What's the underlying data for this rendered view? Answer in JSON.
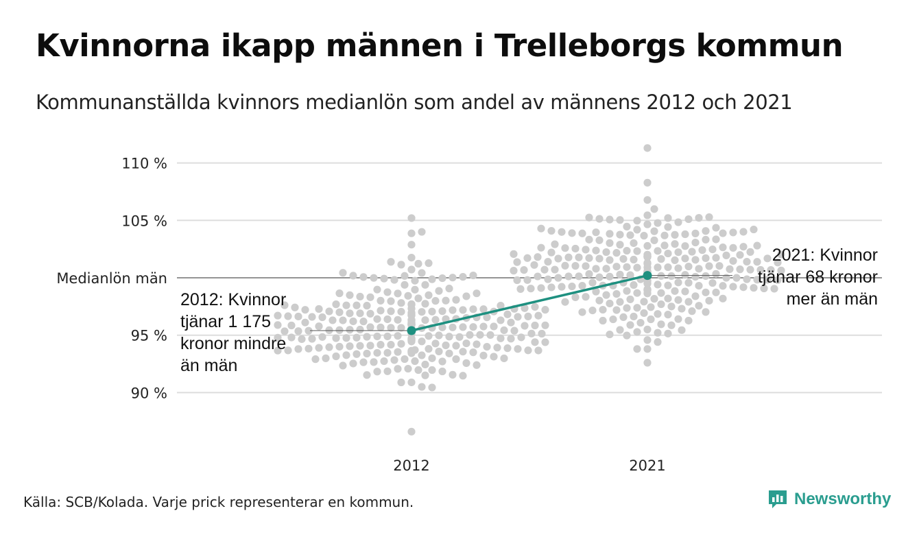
{
  "title": "Kvinnorna ikapp männen i Trelleborgs kommun",
  "subtitle": "Kommunanställda kvinnors medianlön som andel av männens 2012 och 2021",
  "source": "Källa: SCB/Kolada. Varje prick representerar en kommun.",
  "brand": {
    "name": "Newsworthy",
    "icon": "bar-chart-speech-bubble-icon"
  },
  "colors": {
    "highlight": "#1e9080",
    "dots": "#cccccc",
    "grid": "#dddddd",
    "reference": "#555555"
  },
  "chart_data": {
    "type": "scatter",
    "subtype": "beeswarm",
    "title": "Kvinnorna ikapp männen i Trelleborgs kommun",
    "xlabel": "",
    "ylabel": "",
    "categories": [
      "2012",
      "2021"
    ],
    "ylim": [
      86,
      111.5
    ],
    "y_ticks": [
      {
        "value": 90,
        "label": "90 %"
      },
      {
        "value": 95,
        "label": "95 %"
      },
      {
        "value": 105,
        "label": "105 %"
      },
      {
        "value": 110,
        "label": "110 %"
      }
    ],
    "reference_line": {
      "value": 100,
      "label": "Medianlön män"
    },
    "grid": true,
    "series": [
      {
        "name": "Trelleborg",
        "values": [
          95.4,
          100.2
        ]
      }
    ],
    "distribution": [
      {
        "category": "2012",
        "count": 290,
        "mean": 95.6,
        "sd": 2.5,
        "min": 86.6,
        "max": 105.2
      },
      {
        "category": "2021",
        "count": 290,
        "mean": 100.9,
        "sd": 2.4,
        "min": 92.6,
        "max": 111.3
      }
    ],
    "annotations": [
      {
        "category": "2012",
        "text": "2012: Kvinnor\ntjänar 1 175\nkronor mindre\nän män"
      },
      {
        "category": "2021",
        "text": "2021: Kvinnor\ntjänar 68 kronor\nmer än män"
      }
    ]
  }
}
